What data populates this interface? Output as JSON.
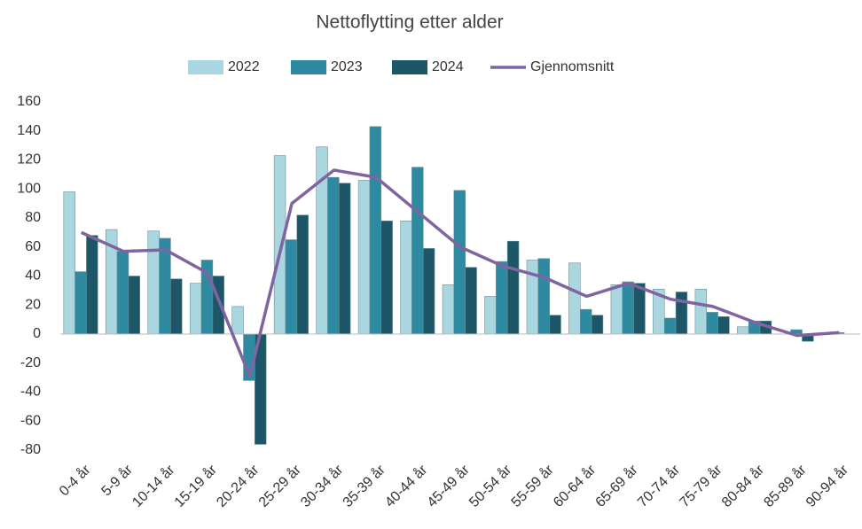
{
  "chart_data": {
    "type": "bar",
    "title": "Nettoflytting etter alder",
    "categories": [
      "0-4 år",
      "5-9 år",
      "10-14 år",
      "15-19 år",
      "20-24 år",
      "25-29 år",
      "30-34 år",
      "35-39 år",
      "40-44 år",
      "45-49 år",
      "50-54 år",
      "55-59 år",
      "60-64 år",
      "65-69 år",
      "70-74 år",
      "75-79 år",
      "80-84 år",
      "85-89 år",
      "90-94 år"
    ],
    "series": [
      {
        "name": "2022",
        "color": "#a9d6df",
        "values": [
          98,
          72,
          71,
          35,
          19,
          123,
          129,
          106,
          78,
          34,
          26,
          51,
          49,
          34,
          31,
          31,
          5,
          0,
          0
        ]
      },
      {
        "name": "2023",
        "color": "#2e8aa0",
        "values": [
          43,
          57,
          66,
          51,
          -32,
          65,
          108,
          143,
          115,
          99,
          50,
          52,
          17,
          36,
          11,
          15,
          9,
          3,
          1
        ]
      },
      {
        "name": "2024",
        "color": "#1d5667",
        "values": [
          68,
          40,
          38,
          40,
          -76,
          82,
          104,
          78,
          59,
          46,
          64,
          13,
          13,
          35,
          29,
          12,
          9,
          -5,
          0
        ]
      },
      {
        "name": "Gjennomsnitt",
        "color": "#8064a2",
        "type": "line",
        "values": [
          70,
          57,
          58,
          42,
          -29,
          90,
          113,
          108,
          84,
          60,
          47,
          39,
          26,
          35,
          24,
          19,
          8,
          -1,
          1
        ]
      }
    ],
    "ylim": [
      -80,
      160
    ],
    "yticks": [
      -80,
      -60,
      -40,
      -20,
      0,
      20,
      40,
      60,
      80,
      100,
      120,
      140,
      160
    ],
    "grid": false,
    "legend": "top"
  }
}
